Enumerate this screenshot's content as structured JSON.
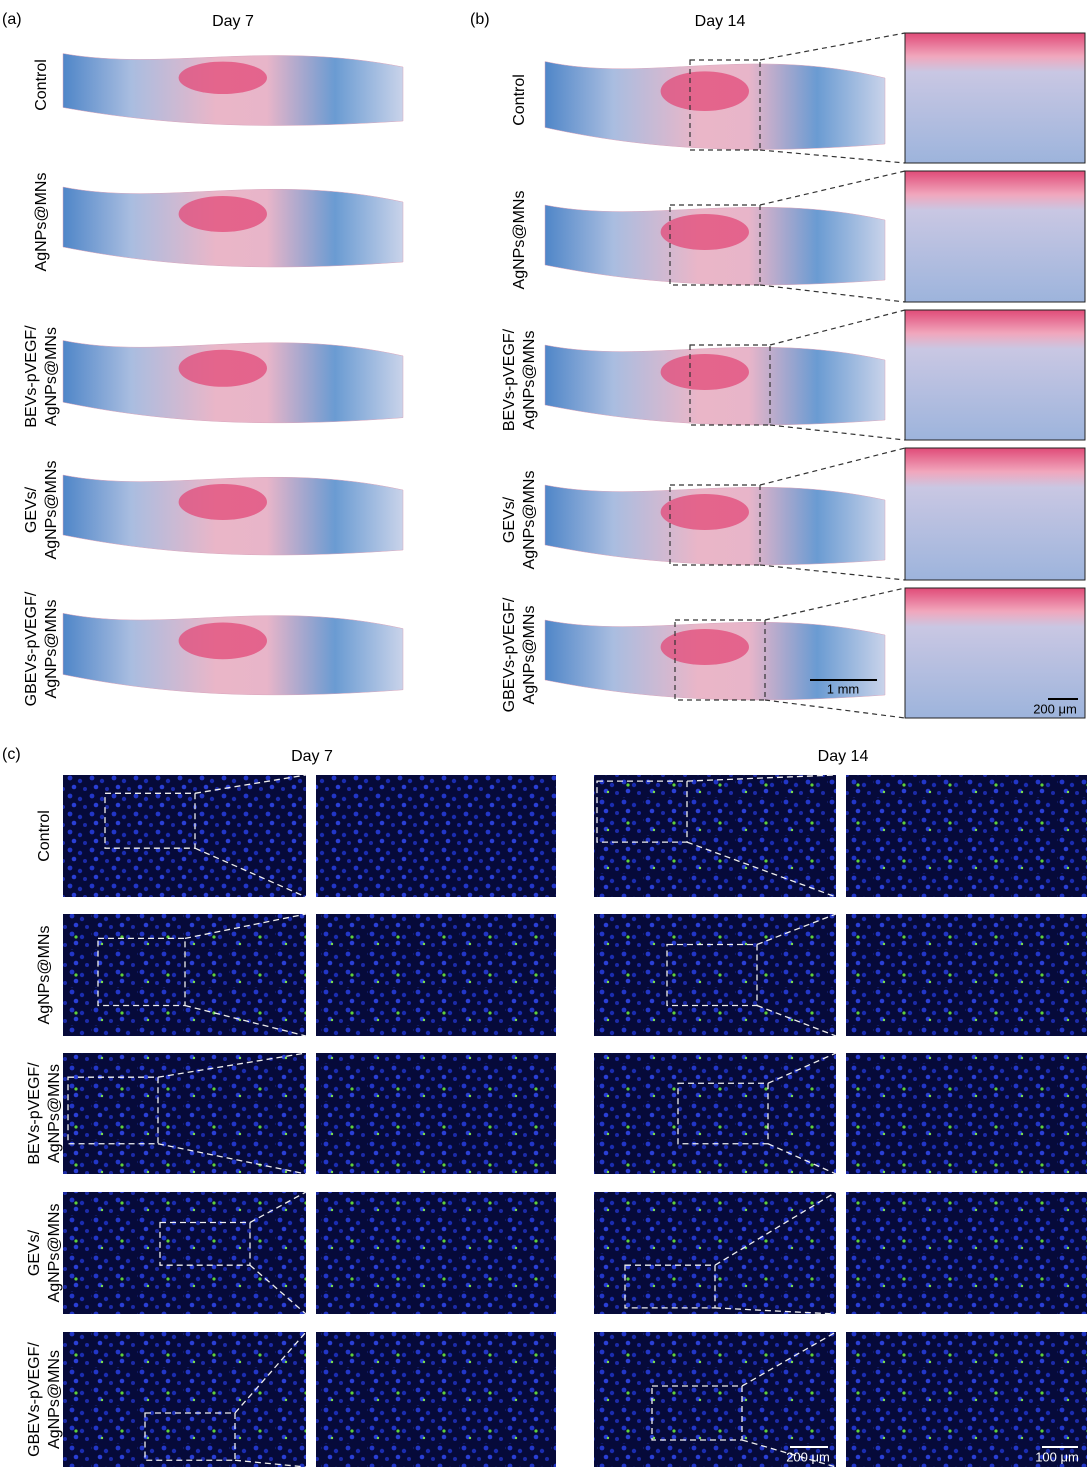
{
  "panels": [
    {
      "label": "(a)",
      "title": "Day 7"
    },
    {
      "label": "(b)",
      "title": "Day 14"
    },
    {
      "label": "(c)",
      "titles": [
        "Day 7",
        "Day 14"
      ]
    }
  ],
  "groups": [
    [
      "Control"
    ],
    [
      "AgNPs@MNs"
    ],
    [
      "BEVs-pVEGF/",
      "AgNPs@MNs"
    ],
    [
      "GEVs/",
      "AgNPs@MNs"
    ],
    [
      "GBEVs-pVEGF/",
      "AgNPs@MNs"
    ]
  ],
  "scale_bars": [
    "1 mm",
    "200 μm",
    "200 μm",
    "100 μm"
  ]
}
